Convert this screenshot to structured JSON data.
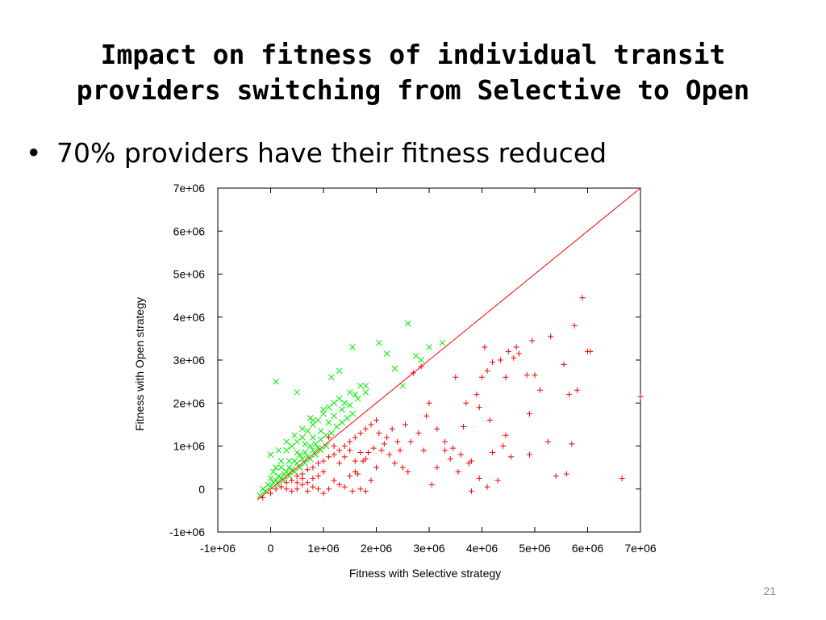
{
  "slide": {
    "title_line1": "Impact on fitness of individual transit",
    "title_line2": "providers switching from Selective to Open",
    "bullet_symbol": "•",
    "bullet_text": "70% providers have their fitness reduced",
    "slide_number": "21"
  },
  "chart_data": {
    "type": "scatter",
    "title": "",
    "xlabel": "Fitness with Selective strategy",
    "ylabel": "Fitness with Open strategy",
    "xlim": [
      -1000000,
      7000000
    ],
    "ylim": [
      -1000000,
      7000000
    ],
    "x_ticks": [
      -1000000,
      0,
      1000000,
      2000000,
      3000000,
      4000000,
      5000000,
      6000000,
      7000000
    ],
    "x_tick_labels": [
      "-1e+06",
      "0",
      "1e+06",
      "2e+06",
      "3e+06",
      "4e+06",
      "5e+06",
      "6e+06",
      "7e+06"
    ],
    "y_ticks": [
      -1000000,
      0,
      1000000,
      2000000,
      3000000,
      4000000,
      5000000,
      6000000,
      7000000
    ],
    "y_tick_labels": [
      "-1e+06",
      "0",
      "1e+06",
      "2e+06",
      "3e+06",
      "4e+06",
      "5e+06",
      "6e+06",
      "7e+06"
    ],
    "grid": false,
    "reference_line": {
      "from": [
        -250000,
        -250000
      ],
      "to": [
        7000000,
        7000000
      ],
      "color": "#ff0000"
    },
    "series": [
      {
        "marker": "x",
        "color": "#00ee00",
        "points": [
          [
            -200000,
            -150000
          ],
          [
            -100000,
            -50000
          ],
          [
            0,
            50000
          ],
          [
            100000,
            200000
          ],
          [
            200000,
            250000
          ],
          [
            300000,
            400000
          ],
          [
            400000,
            450000
          ],
          [
            500000,
            600000
          ],
          [
            600000,
            700000
          ],
          [
            700000,
            750000
          ],
          [
            800000,
            900000
          ],
          [
            900000,
            950000
          ],
          [
            -150000,
            0
          ],
          [
            50000,
            150000
          ],
          [
            150000,
            300000
          ],
          [
            250000,
            350000
          ],
          [
            350000,
            500000
          ],
          [
            450000,
            650000
          ],
          [
            550000,
            800000
          ],
          [
            650000,
            850000
          ],
          [
            750000,
            1000000
          ],
          [
            850000,
            1050000
          ],
          [
            950000,
            1150000
          ],
          [
            1050000,
            1250000
          ],
          [
            1150000,
            1300000
          ],
          [
            1250000,
            1450000
          ],
          [
            1350000,
            1550000
          ],
          [
            1450000,
            1650000
          ],
          [
            1550000,
            1750000
          ],
          [
            0,
            250000
          ],
          [
            50000,
            400000
          ],
          [
            100000,
            500000
          ],
          [
            200000,
            650000
          ],
          [
            300000,
            900000
          ],
          [
            400000,
            1000000
          ],
          [
            500000,
            1100000
          ],
          [
            600000,
            1200000
          ],
          [
            700000,
            1350000
          ],
          [
            800000,
            1500000
          ],
          [
            900000,
            1600000
          ],
          [
            1000000,
            1750000
          ],
          [
            1100000,
            1900000
          ],
          [
            1200000,
            2000000
          ],
          [
            1300000,
            2100000
          ],
          [
            100000,
            2500000
          ],
          [
            500000,
            2250000
          ],
          [
            800000,
            1600000
          ],
          [
            1000000,
            1850000
          ],
          [
            1150000,
            2600000
          ],
          [
            1300000,
            2750000
          ],
          [
            1400000,
            2000000
          ],
          [
            1500000,
            2250000
          ],
          [
            1600000,
            2200000
          ],
          [
            1700000,
            2400000
          ],
          [
            1800000,
            2400000
          ],
          [
            1550000,
            3300000
          ],
          [
            2050000,
            3400000
          ],
          [
            2200000,
            3150000
          ],
          [
            2350000,
            2800000
          ],
          [
            2500000,
            2400000
          ],
          [
            2600000,
            3850000
          ],
          [
            2750000,
            3100000
          ],
          [
            3000000,
            3300000
          ],
          [
            3250000,
            3400000
          ],
          [
            2850000,
            3000000
          ],
          [
            -50000,
            100000
          ],
          [
            150000,
            100000
          ],
          [
            250000,
            200000
          ],
          [
            350000,
            300000
          ],
          [
            450000,
            400000
          ],
          [
            550000,
            500000
          ],
          [
            650000,
            600000
          ],
          [
            750000,
            700000
          ],
          [
            850000,
            800000
          ],
          [
            950000,
            900000
          ],
          [
            1050000,
            1000000
          ],
          [
            200000,
            500000
          ],
          [
            350000,
            650000
          ],
          [
            500000,
            850000
          ],
          [
            650000,
            1050000
          ],
          [
            800000,
            1200000
          ],
          [
            950000,
            1350000
          ],
          [
            1100000,
            1550000
          ],
          [
            1200000,
            1700000
          ],
          [
            1350000,
            1850000
          ],
          [
            1500000,
            1950000
          ],
          [
            1650000,
            2100000
          ],
          [
            1800000,
            2250000
          ],
          [
            0,
            800000
          ],
          [
            150000,
            900000
          ],
          [
            300000,
            1100000
          ],
          [
            450000,
            1250000
          ],
          [
            600000,
            1400000
          ],
          [
            750000,
            1650000
          ]
        ]
      },
      {
        "marker": "+",
        "color": "#ff0000",
        "points": [
          [
            -150000,
            -200000
          ],
          [
            0,
            -100000
          ],
          [
            100000,
            0
          ],
          [
            200000,
            50000
          ],
          [
            300000,
            150000
          ],
          [
            400000,
            200000
          ],
          [
            500000,
            300000
          ],
          [
            600000,
            350000
          ],
          [
            700000,
            450000
          ],
          [
            800000,
            500000
          ],
          [
            900000,
            600000
          ],
          [
            1000000,
            650000
          ],
          [
            1100000,
            750000
          ],
          [
            1200000,
            800000
          ],
          [
            1300000,
            900000
          ],
          [
            1400000,
            1000000
          ],
          [
            1500000,
            1100000
          ],
          [
            1600000,
            1200000
          ],
          [
            1700000,
            1300000
          ],
          [
            1800000,
            1400000
          ],
          [
            1900000,
            1500000
          ],
          [
            2000000,
            1600000
          ],
          [
            300000,
            0
          ],
          [
            400000,
            -50000
          ],
          [
            500000,
            0
          ],
          [
            600000,
            100000
          ],
          [
            700000,
            -50000
          ],
          [
            800000,
            50000
          ],
          [
            900000,
            0
          ],
          [
            1000000,
            -100000
          ],
          [
            1100000,
            0
          ],
          [
            1200000,
            200000
          ],
          [
            1300000,
            100000
          ],
          [
            1400000,
            50000
          ],
          [
            1500000,
            300000
          ],
          [
            1600000,
            400000
          ],
          [
            1700000,
            0
          ],
          [
            1800000,
            -50000
          ],
          [
            1900000,
            200000
          ],
          [
            2000000,
            500000
          ],
          [
            2100000,
            900000
          ],
          [
            2200000,
            1200000
          ],
          [
            2300000,
            1400000
          ],
          [
            2400000,
            1100000
          ],
          [
            2500000,
            500000
          ],
          [
            2600000,
            400000
          ],
          [
            2800000,
            1300000
          ],
          [
            2700000,
            2700000
          ],
          [
            2850000,
            2850000
          ],
          [
            3000000,
            2000000
          ],
          [
            3050000,
            100000
          ],
          [
            3150000,
            500000
          ],
          [
            3300000,
            900000
          ],
          [
            3400000,
            700000
          ],
          [
            3500000,
            2600000
          ],
          [
            3550000,
            400000
          ],
          [
            3650000,
            1450000
          ],
          [
            3700000,
            2000000
          ],
          [
            3800000,
            -50000
          ],
          [
            3900000,
            2200000
          ],
          [
            3950000,
            1900000
          ],
          [
            4000000,
            2600000
          ],
          [
            4050000,
            3300000
          ],
          [
            4100000,
            2750000
          ],
          [
            4150000,
            1600000
          ],
          [
            4200000,
            2950000
          ],
          [
            4300000,
            200000
          ],
          [
            4350000,
            3000000
          ],
          [
            4400000,
            1000000
          ],
          [
            4450000,
            2600000
          ],
          [
            4500000,
            3200000
          ],
          [
            4600000,
            3050000
          ],
          [
            4650000,
            3300000
          ],
          [
            4700000,
            3150000
          ],
          [
            4850000,
            2650000
          ],
          [
            4900000,
            1750000
          ],
          [
            4950000,
            3450000
          ],
          [
            5000000,
            2650000
          ],
          [
            5100000,
            2300000
          ],
          [
            5250000,
            1100000
          ],
          [
            5300000,
            3550000
          ],
          [
            5400000,
            300000
          ],
          [
            5550000,
            2900000
          ],
          [
            5600000,
            350000
          ],
          [
            5650000,
            2200000
          ],
          [
            5700000,
            1050000
          ],
          [
            5750000,
            3800000
          ],
          [
            5800000,
            2300000
          ],
          [
            5900000,
            4450000
          ],
          [
            6000000,
            3200000
          ],
          [
            6050000,
            3200000
          ],
          [
            6650000,
            250000
          ],
          [
            7000000,
            2150000
          ],
          [
            3800000,
            650000
          ],
          [
            3950000,
            250000
          ],
          [
            4100000,
            50000
          ],
          [
            4200000,
            850000
          ],
          [
            4450000,
            1250000
          ],
          [
            4550000,
            750000
          ],
          [
            4900000,
            800000
          ],
          [
            2900000,
            900000
          ],
          [
            2950000,
            1700000
          ],
          [
            3150000,
            1400000
          ],
          [
            3300000,
            1100000
          ],
          [
            3450000,
            950000
          ],
          [
            3600000,
            800000
          ],
          [
            3750000,
            600000
          ],
          [
            1550000,
            -50000
          ],
          [
            1650000,
            350000
          ],
          [
            1750000,
            650000
          ],
          [
            1850000,
            850000
          ],
          [
            1950000,
            950000
          ],
          [
            2050000,
            1300000
          ],
          [
            2150000,
            1050000
          ],
          [
            2250000,
            800000
          ],
          [
            2350000,
            600000
          ],
          [
            2450000,
            900000
          ],
          [
            2550000,
            1500000
          ],
          [
            2650000,
            1100000
          ],
          [
            1100000,
            1200000
          ],
          [
            1200000,
            1000000
          ],
          [
            1300000,
            600000
          ],
          [
            1400000,
            750000
          ],
          [
            1500000,
            900000
          ],
          [
            1600000,
            650000
          ],
          [
            1700000,
            850000
          ],
          [
            1800000,
            700000
          ],
          [
            1000000,
            400000
          ],
          [
            900000,
            300000
          ],
          [
            800000,
            250000
          ],
          [
            700000,
            150000
          ],
          [
            600000,
            250000
          ],
          [
            500000,
            150000
          ]
        ]
      }
    ]
  }
}
